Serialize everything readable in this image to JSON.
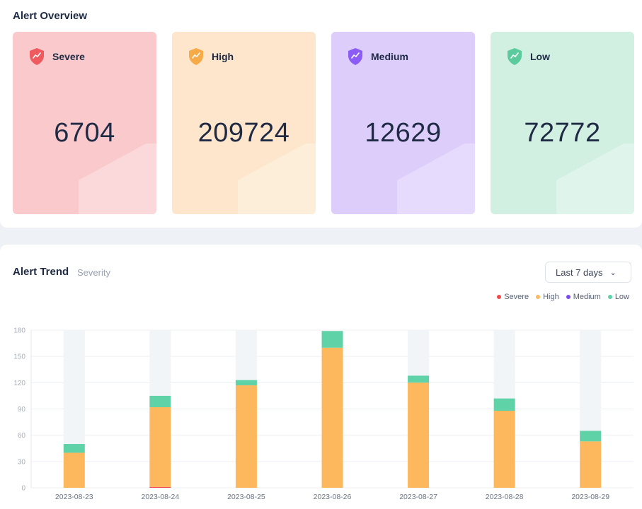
{
  "overview": {
    "title": "Alert Overview",
    "cards": [
      {
        "label": "Severe",
        "value": "6704",
        "bg": "#f9c9cb",
        "accent": "#ef5a5f",
        "deco": "#fbd9db"
      },
      {
        "label": "High",
        "value": "209724",
        "bg": "#fde6cc",
        "accent": "#f7ab48",
        "deco": "#fdeed9"
      },
      {
        "label": "Medium",
        "value": "12629",
        "bg": "#dccdfb",
        "accent": "#8b5cf6",
        "deco": "#e6dbfc"
      },
      {
        "label": "Low",
        "value": "72772",
        "bg": "#d1f0e2",
        "accent": "#5bcb9d",
        "deco": "#dff5eb"
      }
    ]
  },
  "trend": {
    "title": "Alert Trend",
    "subtitle": "Severity",
    "range_label": "Last 7 days",
    "legend": [
      {
        "name": "Severe",
        "color": "#ef4b4b"
      },
      {
        "name": "High",
        "color": "#fdb85e"
      },
      {
        "name": "Medium",
        "color": "#7a4cf0"
      },
      {
        "name": "Low",
        "color": "#5fd2a8"
      }
    ]
  },
  "chart_data": {
    "type": "bar",
    "stacked": true,
    "categories": [
      "2023-08-23",
      "2023-08-24",
      "2023-08-25",
      "2023-08-26",
      "2023-08-27",
      "2023-08-28",
      "2023-08-29"
    ],
    "series": [
      {
        "name": "Severe",
        "color": "#ef4b4b",
        "values": [
          0,
          1,
          0,
          0,
          0,
          0,
          0
        ]
      },
      {
        "name": "High",
        "color": "#fdb85e",
        "values": [
          40,
          91,
          117,
          160,
          120,
          88,
          53
        ]
      },
      {
        "name": "Medium",
        "color": "#7a4cf0",
        "values": [
          0,
          0,
          0,
          0,
          0,
          0,
          0
        ]
      },
      {
        "name": "Low",
        "color": "#5fd2a8",
        "values": [
          10,
          13,
          6,
          19,
          8,
          14,
          12
        ]
      }
    ],
    "yticks": [
      0,
      30,
      60,
      90,
      120,
      150,
      180
    ],
    "ylim": [
      0,
      180
    ],
    "grid": true,
    "legend_position": "top-right"
  }
}
